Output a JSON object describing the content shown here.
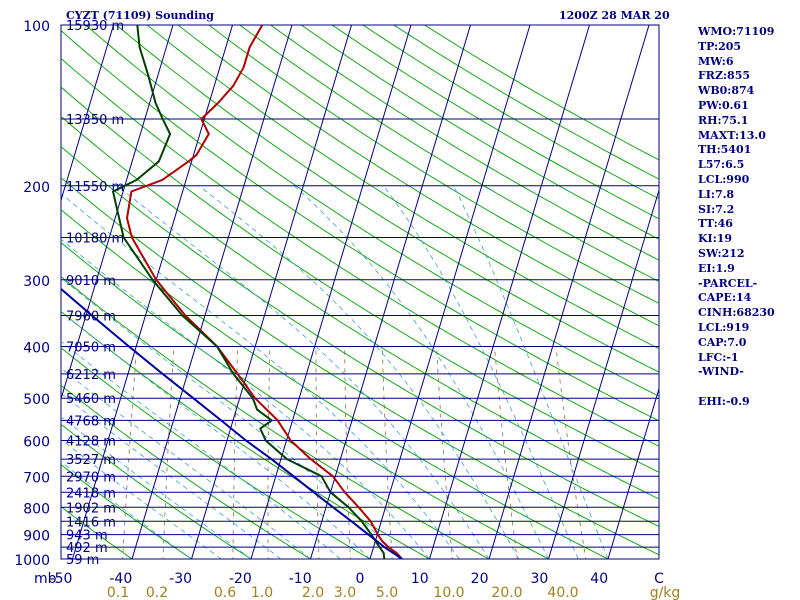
{
  "header": {
    "station_title": "CYZT (71109) Sounding",
    "run_time": "1200Z 28 MAR 20"
  },
  "indices": [
    "WMO:71109",
    "TP:205",
    "MW:6",
    "FRZ:855",
    "WB0:874",
    "PW:0.61",
    "RH:75.1",
    "MAXT:13.0",
    "TH:5401",
    "L57:6.5",
    "LCL:990",
    "LI:7.8",
    "SI:7.2",
    "TT:46",
    "KI:19",
    "SW:212",
    "EI:1.9",
    "-PARCEL-",
    "CAPE:14",
    "CINH:68230",
    "LCL:919",
    "CAP:7.0",
    "LFC:-1",
    "-WIND-",
    "",
    "EHI:-0.9"
  ],
  "chart_data": {
    "type": "line",
    "chart_kind": "skew-T log-P sounding",
    "y_axis": {
      "unit_label": "mb",
      "scale": "log",
      "range": [
        1000,
        100
      ],
      "ticks": [
        100,
        200,
        300,
        400,
        500,
        600,
        700,
        800,
        900,
        1000
      ]
    },
    "x_axis": {
      "range": [
        -50,
        50
      ],
      "ticks": [
        "-50",
        "-40",
        "-30",
        "-20",
        "-10",
        "0",
        "10",
        "20",
        "30",
        "40",
        "C"
      ]
    },
    "mixing_ratio_labels": [
      "0.1",
      "0.2",
      "0.6",
      "1.0",
      "2.0",
      "3.0",
      "5.0",
      "10.0",
      "20.0",
      "40.0",
      "g/kg"
    ],
    "height_labels": [
      {
        "p": 100,
        "label": "15930 m"
      },
      {
        "p": 150,
        "label": "13350 m"
      },
      {
        "p": 200,
        "label": "11550 m"
      },
      {
        "p": 250,
        "label": "10180 m"
      },
      {
        "p": 300,
        "label": "9010 m"
      },
      {
        "p": 350,
        "label": "7960 m"
      },
      {
        "p": 400,
        "label": "7050 m"
      },
      {
        "p": 450,
        "label": "6212 m"
      },
      {
        "p": 500,
        "label": "5460 m"
      },
      {
        "p": 550,
        "label": "4768 m"
      },
      {
        "p": 600,
        "label": "4128 m"
      },
      {
        "p": 650,
        "label": "3527 m"
      },
      {
        "p": 700,
        "label": "2970 m"
      },
      {
        "p": 750,
        "label": "2418 m"
      },
      {
        "p": 800,
        "label": "1902 m"
      },
      {
        "p": 850,
        "label": "1416 m"
      },
      {
        "p": 900,
        "label": "943 m"
      },
      {
        "p": 950,
        "label": "492 m"
      },
      {
        "p": 1000,
        "label": "59 m"
      }
    ],
    "series": [
      {
        "color": "#b00000",
        "points": [
          [
            1000,
            5.4
          ],
          [
            975,
            4.2
          ],
          [
            950,
            2.5
          ],
          [
            925,
            1.1
          ],
          [
            900,
            0.1
          ],
          [
            850,
            -1.8
          ],
          [
            800,
            -4.5
          ],
          [
            750,
            -7.6
          ],
          [
            700,
            -10.4
          ],
          [
            650,
            -15.0
          ],
          [
            600,
            -19.3
          ],
          [
            550,
            -22.5
          ],
          [
            500,
            -27.4
          ],
          [
            450,
            -31.6
          ],
          [
            400,
            -36.4
          ],
          [
            350,
            -43.3
          ],
          [
            300,
            -50.0
          ],
          [
            250,
            -56.2
          ],
          [
            230,
            -58.0
          ],
          [
            205,
            -58.6
          ],
          [
            195,
            -54.0
          ],
          [
            180,
            -50.5
          ],
          [
            175,
            -49.5
          ],
          [
            160,
            -48.5
          ],
          [
            150,
            -50.5
          ],
          [
            140,
            -48.5
          ],
          [
            130,
            -46.8
          ],
          [
            120,
            -46.0
          ],
          [
            110,
            -46.0
          ],
          [
            100,
            -45.0
          ]
        ]
      },
      {
        "color": "#004000",
        "points": [
          [
            1000,
            2.4
          ],
          [
            975,
            2.0
          ],
          [
            950,
            1.0
          ],
          [
            925,
            0.0
          ],
          [
            900,
            -1.0
          ],
          [
            850,
            -3.3
          ],
          [
            800,
            -6.2
          ],
          [
            750,
            -10.0
          ],
          [
            700,
            -12.3
          ],
          [
            650,
            -19.0
          ],
          [
            600,
            -23.5
          ],
          [
            570,
            -25.0
          ],
          [
            550,
            -23.5
          ],
          [
            525,
            -26.5
          ],
          [
            500,
            -27.8
          ],
          [
            450,
            -32.3
          ],
          [
            400,
            -36.4
          ],
          [
            350,
            -43.8
          ],
          [
            300,
            -50.6
          ],
          [
            250,
            -57.6
          ],
          [
            205,
            -61.7
          ],
          [
            195,
            -58.3
          ],
          [
            180,
            -55.5
          ],
          [
            160,
            -55.0
          ],
          [
            150,
            -57.0
          ],
          [
            140,
            -59.0
          ],
          [
            125,
            -61.5
          ],
          [
            110,
            -64.5
          ],
          [
            100,
            -66.0
          ]
        ]
      },
      {
        "color": "#0000a0",
        "points": [
          [
            1000,
            5.4
          ],
          [
            950,
            1.8
          ],
          [
            919,
            -0.2
          ],
          [
            900,
            -1.5
          ],
          [
            850,
            -5.0
          ],
          [
            800,
            -8.8
          ],
          [
            750,
            -12.8
          ],
          [
            700,
            -17.0
          ],
          [
            650,
            -21.6
          ],
          [
            600,
            -26.8
          ],
          [
            550,
            -32.0
          ],
          [
            500,
            -37.8
          ],
          [
            450,
            -44.2
          ],
          [
            400,
            -51.2
          ],
          [
            350,
            -59.0
          ],
          [
            300,
            -67.8
          ],
          [
            250,
            -77.5
          ],
          [
            200,
            -89.0
          ],
          [
            150,
            -103.0
          ],
          [
            110,
            -117.0
          ]
        ]
      }
    ]
  }
}
